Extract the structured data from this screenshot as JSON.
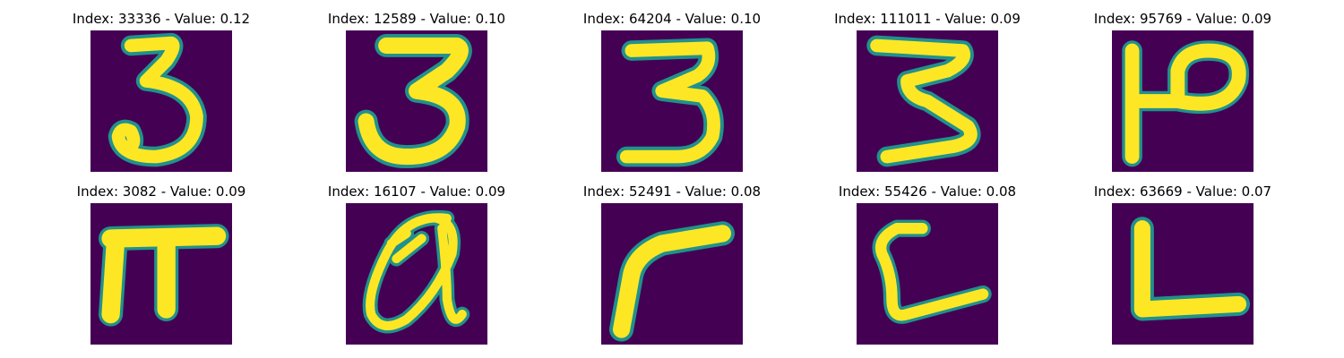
{
  "panels": [
    {
      "title": "Index: 33336 - Value: 0.12",
      "glyph": "three-round"
    },
    {
      "title": "Index: 12589 - Value: 0.10",
      "glyph": "three-bold"
    },
    {
      "title": "Index: 64204 - Value: 0.10",
      "glyph": "three-flat"
    },
    {
      "title": "Index: 111011 - Value: 0.09",
      "glyph": "three-z"
    },
    {
      "title": "Index: 95769 - Value: 0.09",
      "glyph": "P-mirrored"
    },
    {
      "title": "Index: 3082 - Value: 0.09",
      "glyph": "pi"
    },
    {
      "title": "Index: 16107 - Value: 0.09",
      "glyph": "a-loop"
    },
    {
      "title": "Index: 52491 - Value: 0.08",
      "glyph": "r-curve"
    },
    {
      "title": "Index: 55426 - Value: 0.08",
      "glyph": "L-curve"
    },
    {
      "title": "Index: 63669 - Value: 0.07",
      "glyph": "L-block"
    }
  ],
  "colors": {
    "background": "#440154",
    "stroke": "#fde725",
    "edge": "#21918c"
  }
}
